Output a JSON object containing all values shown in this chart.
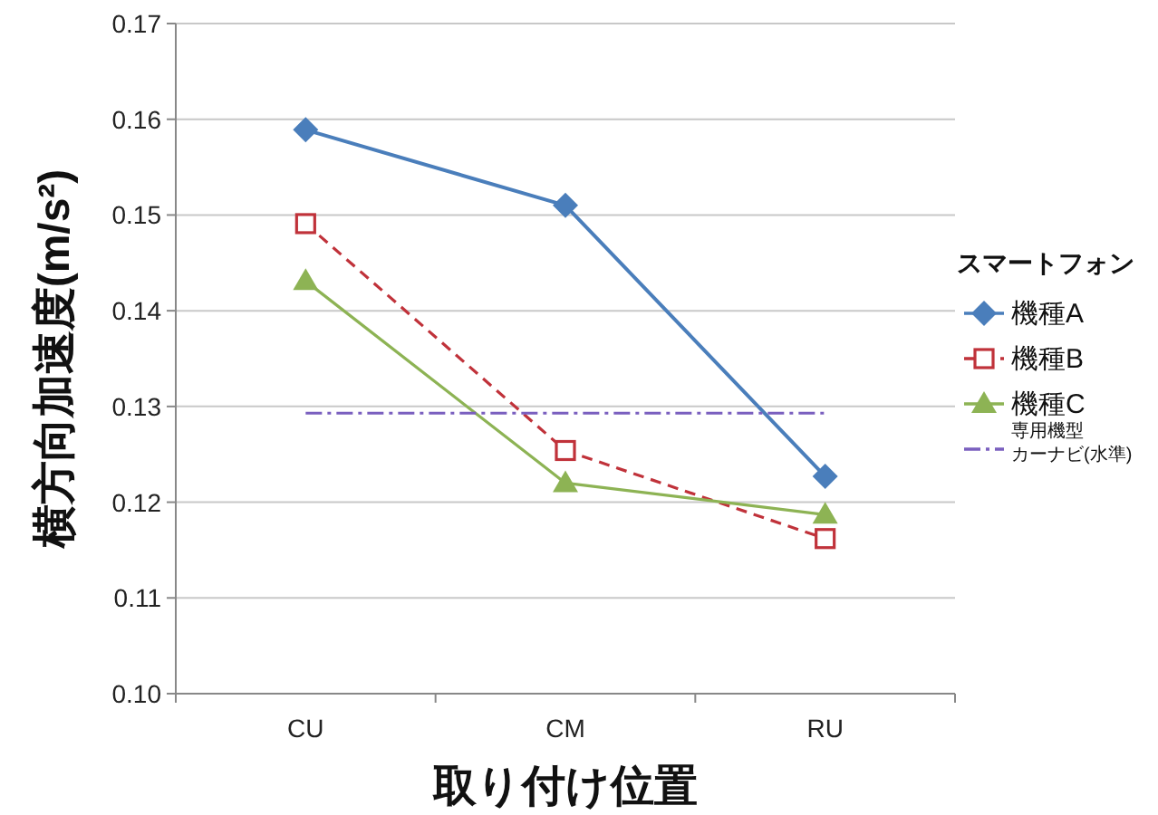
{
  "chart_data": {
    "type": "line",
    "xlabel": "取り付け位置",
    "ylabel": "横方向加速度(m/s²)",
    "legend_title": "スマートフォン",
    "legend": "right",
    "grid": "y",
    "categories": [
      "CU",
      "CM",
      "RU"
    ],
    "ylim": [
      0.1,
      0.17
    ],
    "yticks": [
      {
        "value": 0.1,
        "label": "0.10"
      },
      {
        "value": 0.11,
        "label": "0.11"
      },
      {
        "value": 0.12,
        "label": "0.12"
      },
      {
        "value": 0.13,
        "label": "0.13"
      },
      {
        "value": 0.14,
        "label": "0.14"
      },
      {
        "value": 0.15,
        "label": "0.15"
      },
      {
        "value": 0.16,
        "label": "0.16"
      },
      {
        "value": 0.17,
        "label": "0.17"
      }
    ],
    "series": [
      {
        "name": "機種A",
        "color": "#4a7ebb",
        "marker": "diamond",
        "line_style": "solid",
        "values": [
          0.1589,
          0.151,
          0.1227
        ]
      },
      {
        "name": "機種B",
        "color": "#c0323a",
        "marker": "square",
        "line_style": "dashed",
        "values": [
          0.1491,
          0.1254,
          0.1162
        ]
      },
      {
        "name": "機種C",
        "color": "#8db354",
        "marker": "triangle",
        "line_style": "solid",
        "values": [
          0.1431,
          0.122,
          0.1187
        ]
      },
      {
        "name": "専用機型カーナビ(水準)",
        "color": "#7a5fbf",
        "marker": "none",
        "line_style": "dashdot",
        "values": [
          0.1293,
          0.1293,
          0.1293
        ]
      }
    ]
  }
}
